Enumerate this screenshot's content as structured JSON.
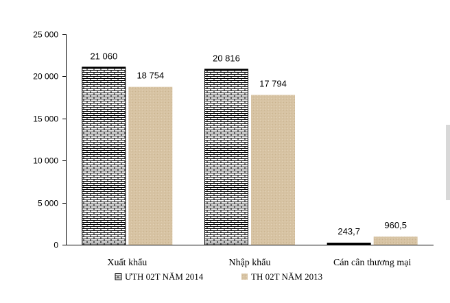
{
  "chart_data": {
    "type": "bar",
    "title": "",
    "xlabel": "",
    "ylabel": "",
    "ylim": [
      0,
      25000
    ],
    "yticks": [
      0,
      5000,
      10000,
      15000,
      20000,
      25000
    ],
    "ytick_labels": [
      "0",
      "5 000",
      "10 000",
      "15 000",
      "20 000",
      "25 000"
    ],
    "categories": [
      "Xuất khẩu",
      "Nhập khẩu",
      "Cán cân thương mại"
    ],
    "series": [
      {
        "name": "ƯTH 02T NĂM 2014",
        "values": [
          21060,
          20816,
          243.7
        ],
        "labels": [
          "21 060",
          "20 816",
          "243,7"
        ],
        "color": "#000000",
        "pattern": "brick"
      },
      {
        "name": "TH 02T NĂM 2013",
        "values": [
          18754,
          17794,
          960.5
        ],
        "labels": [
          "18 754",
          "17 794",
          "960,5"
        ],
        "color": "#d7c3a3",
        "pattern": "sand"
      }
    ],
    "grid": false,
    "legend": "bottom"
  }
}
